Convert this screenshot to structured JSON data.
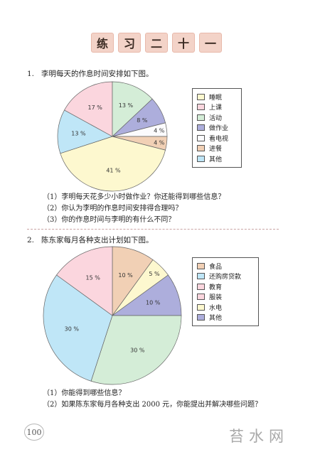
{
  "title_chars": [
    "练",
    "习",
    "二",
    "十",
    "一"
  ],
  "q1": {
    "text": "1.   李明每天的作息时间安排如下图。",
    "subs": [
      "（1）李明每天花多少小时做作业？你还能得到哪些信息？",
      "（2）你认为李明的作息时间安排得合理吗？",
      "（3）你的作息时间与李明的有什么不同？"
    ]
  },
  "q2": {
    "text": "2.   陈东家每月各种支出计划如下图。",
    "subs": [
      "（1）你能得到哪些信息？",
      "（2）如果陈东家每月各种支出 2000 元，你能提出并解决哪些问题？"
    ]
  },
  "page_number": "100",
  "watermark": "苔水网",
  "chart_data": [
    {
      "type": "pie",
      "title": "",
      "slices": [
        {
          "label": "睡眠",
          "value": 41,
          "text": "41 %",
          "color": "#fdf8cf"
        },
        {
          "label": "上课",
          "value": 13,
          "text": "13 %",
          "color": "#bfe6f7"
        },
        {
          "label": "活动",
          "value": 17,
          "text": "17 %",
          "color": "#fbd6de"
        },
        {
          "label": "做作业",
          "value": 13,
          "text": "13 %",
          "color": "#d4edd7"
        },
        {
          "label": "看电视",
          "value": 8,
          "text": "8 %",
          "color": "#adaedc"
        },
        {
          "label": "进餐",
          "value": 4,
          "text": "4 %",
          "color": "#fbfbfd"
        },
        {
          "label": "其他",
          "value": 4,
          "text": "4 %",
          "color": "#f1d0b5"
        }
      ],
      "legend": {
        "position": "right",
        "items": [
          {
            "label": "睡眠",
            "color": "#fdf8cf"
          },
          {
            "label": "上课",
            "color": "#fbd6de"
          },
          {
            "label": "活动",
            "color": "#d4edd7"
          },
          {
            "label": "做作业",
            "color": "#adaedc"
          },
          {
            "label": "看电视",
            "color": "#fbfbfd"
          },
          {
            "label": "进餐",
            "color": "#f1d0b5"
          },
          {
            "label": "其他",
            "color": "#bfe6f7"
          }
        ]
      }
    },
    {
      "type": "pie",
      "title": "",
      "slices": [
        {
          "label": "食品",
          "value": 10,
          "text": "10 %",
          "color": "#f1d0b5"
        },
        {
          "label": "还购房贷款",
          "value": 5,
          "text": "5 %",
          "color": "#fdf8cf"
        },
        {
          "label": "教育",
          "value": 10,
          "text": "10 %",
          "color": "#adaedc"
        },
        {
          "label": "服装",
          "value": 30,
          "text": "30 %",
          "color": "#d4edd7"
        },
        {
          "label": "水电",
          "value": 30,
          "text": "30 %",
          "color": "#bfe6f7"
        },
        {
          "label": "其他",
          "value": 15,
          "text": "15 %",
          "color": "#fbd6de"
        }
      ],
      "legend": {
        "position": "right",
        "items": [
          {
            "label": "食品",
            "color": "#f1d0b5"
          },
          {
            "label": "还购房贷款",
            "color": "#bfe6f7"
          },
          {
            "label": "教育",
            "color": "#fbd6de"
          },
          {
            "label": "服装",
            "color": "#fbd6de"
          },
          {
            "label": "水电",
            "color": "#fdf8cf"
          },
          {
            "label": "其他",
            "color": "#adaedc"
          }
        ]
      }
    }
  ]
}
